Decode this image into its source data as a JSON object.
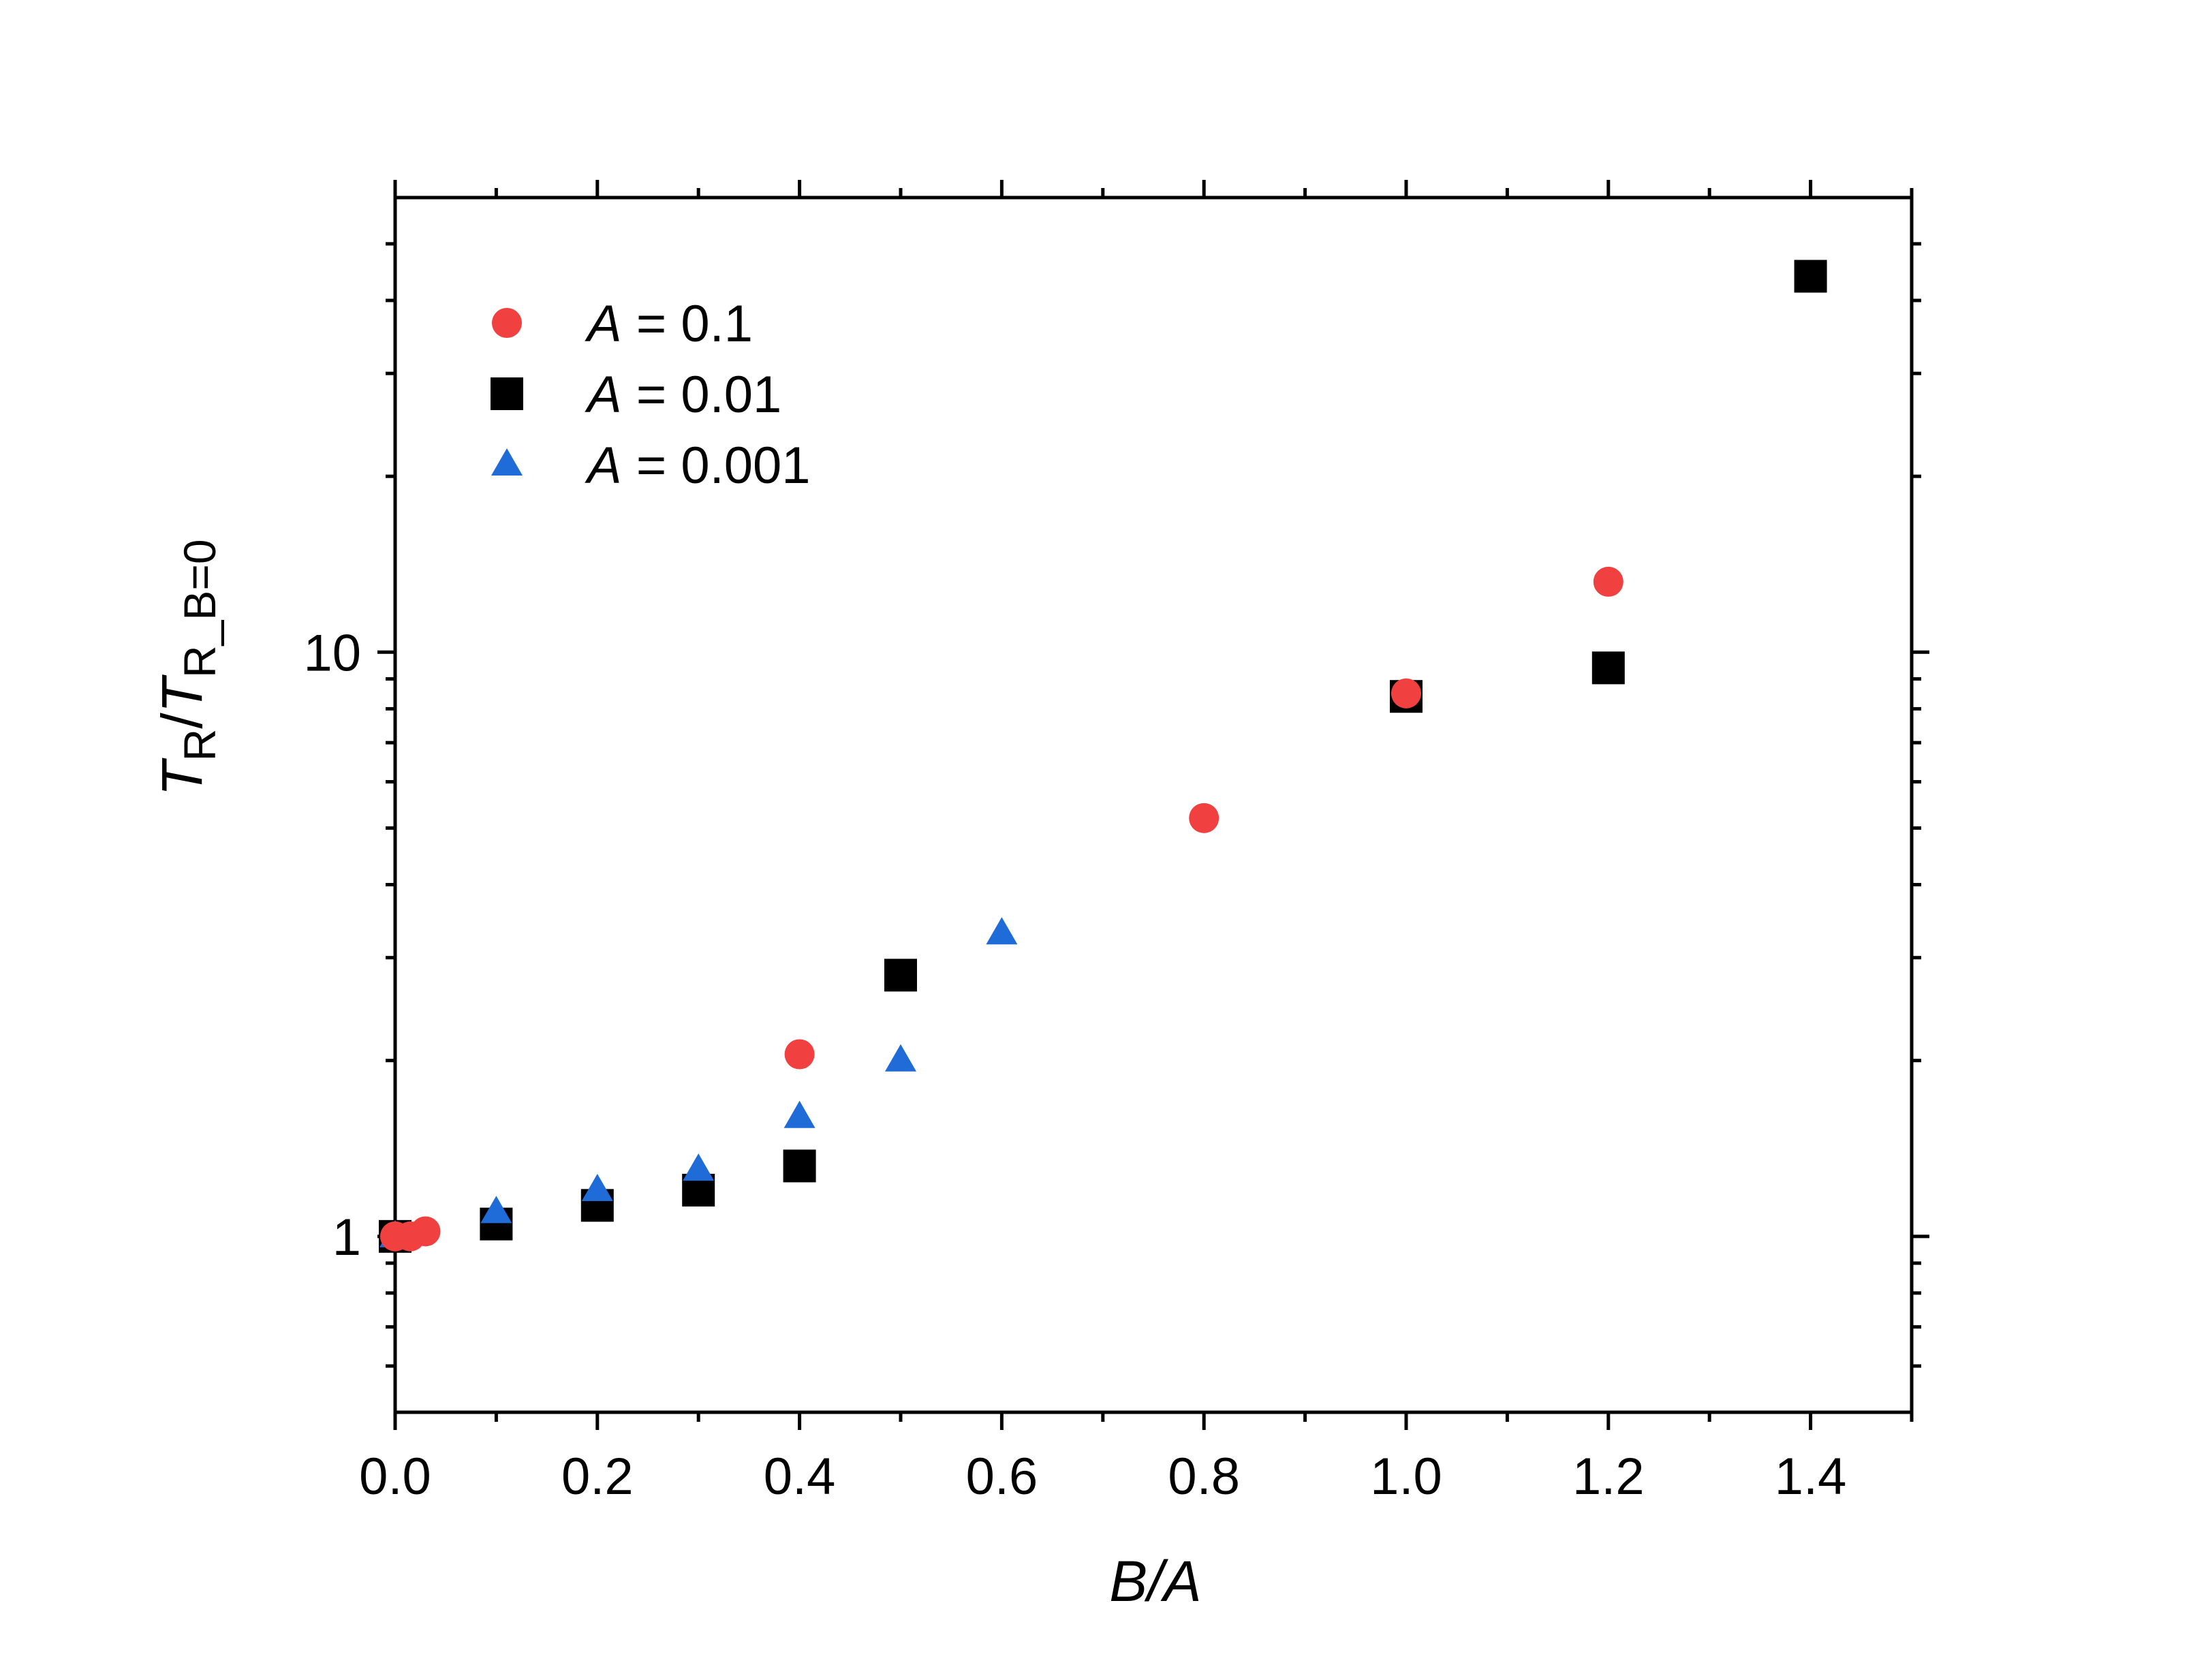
{
  "chart_data": {
    "type": "scatter",
    "xlabel": "B/A",
    "ylabel": {
      "T1": "T",
      "sub1": "R",
      "slash": "/",
      "T2": "T",
      "sub2": "R_B=0"
    },
    "xlim": [
      0.0,
      1.5
    ],
    "ylim": [
      0.5,
      60
    ],
    "yscale": "log",
    "x_ticks": [
      "0.0",
      "0.2",
      "0.4",
      "0.6",
      "0.8",
      "1.0",
      "1.2",
      "1.4"
    ],
    "x_tick_values": [
      0.0,
      0.2,
      0.4,
      0.6,
      0.8,
      1.0,
      1.2,
      1.4
    ],
    "y_major_ticks": [
      "1",
      "10"
    ],
    "y_major_tick_values": [
      1,
      10
    ],
    "legend_position": "top-left",
    "grid": false,
    "series": [
      {
        "name_var": "A",
        "name_rest": " = 0.1",
        "marker": "circle",
        "color": "#f04040",
        "points": [
          [
            0.0,
            1.0
          ],
          [
            0.015,
            1.0
          ],
          [
            0.03,
            1.02
          ],
          [
            0.4,
            2.05
          ],
          [
            0.8,
            5.2
          ],
          [
            1.0,
            8.5
          ],
          [
            1.2,
            13.2
          ]
        ]
      },
      {
        "name_var": "A",
        "name_rest": " = 0.01",
        "marker": "square",
        "color": "#000000",
        "points": [
          [
            0.0,
            1.0
          ],
          [
            0.1,
            1.05
          ],
          [
            0.2,
            1.13
          ],
          [
            0.3,
            1.2
          ],
          [
            0.4,
            1.32
          ],
          [
            0.5,
            2.8
          ],
          [
            1.0,
            8.4
          ],
          [
            1.2,
            9.4
          ],
          [
            1.4,
            44.0
          ]
        ]
      },
      {
        "name_var": "A",
        "name_rest": " = 0.001",
        "marker": "triangle",
        "color": "#1f6bd8",
        "points": [
          [
            0.0,
            1.0
          ],
          [
            0.1,
            1.1
          ],
          [
            0.2,
            1.2
          ],
          [
            0.3,
            1.3
          ],
          [
            0.4,
            1.6
          ],
          [
            0.5,
            2.0
          ],
          [
            0.6,
            3.3
          ]
        ]
      }
    ]
  }
}
